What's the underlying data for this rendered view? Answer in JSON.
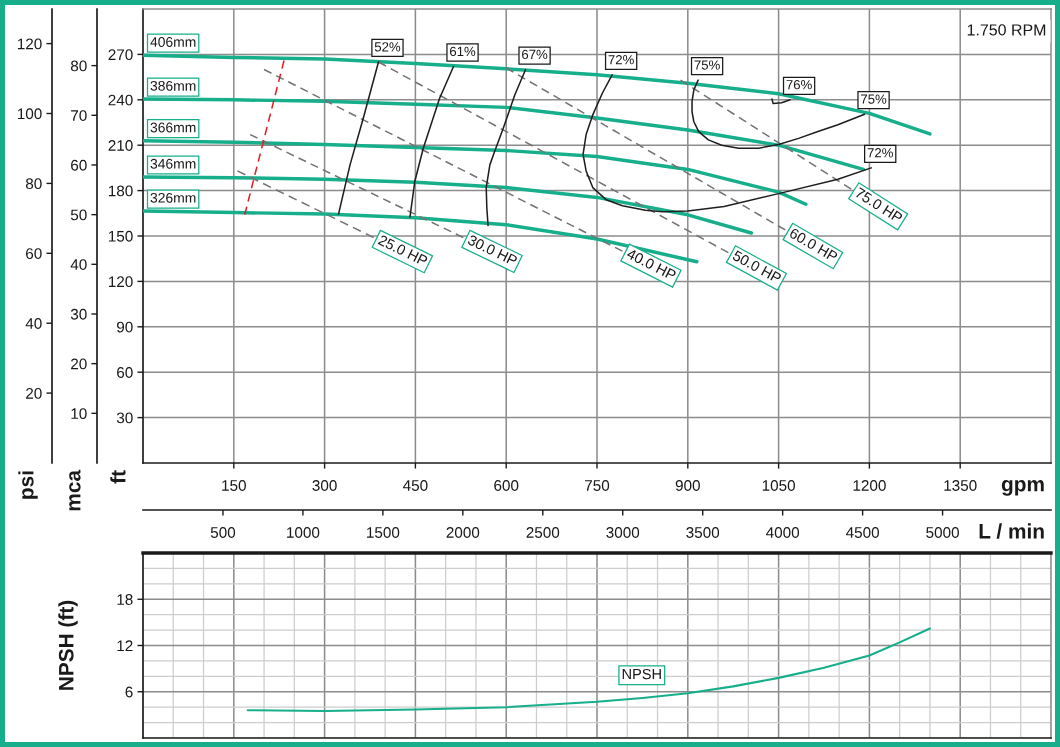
{
  "chart_data": [
    {
      "type": "line",
      "xlabel": "gpm",
      "x2label": "L / min",
      "ylabel": "ft",
      "y2label": "psi",
      "y3label": "mca",
      "xlim": [
        0,
        1500
      ],
      "xticks": [
        150,
        300,
        450,
        600,
        750,
        900,
        1050,
        1200,
        1350
      ],
      "x2lim": [
        0,
        5678
      ],
      "x2ticks": [
        500,
        1000,
        1500,
        2000,
        2500,
        3000,
        3500,
        4000,
        4500,
        5000
      ],
      "ylim": [
        0,
        300
      ],
      "yticks": [
        30,
        60,
        90,
        120,
        150,
        180,
        210,
        240,
        270
      ],
      "y2lim": [
        0,
        129.9
      ],
      "y2ticks": [
        20,
        40,
        60,
        80,
        100,
        120
      ],
      "y3lim": [
        0,
        91.4
      ],
      "y3ticks": [
        10,
        20,
        30,
        40,
        50,
        60,
        70,
        80
      ],
      "grid": true,
      "annotations": [
        "1.750 RPM",
        {
          "text": "52%",
          "x": 389,
          "y": 265
        },
        {
          "text": "61%",
          "x": 513,
          "y": 262
        },
        {
          "text": "67%",
          "x": 632,
          "y": 260
        },
        {
          "text": "72%",
          "x": 775,
          "y": 256.5
        },
        {
          "text": "75%",
          "x": 917,
          "y": 253
        },
        {
          "text": "76%",
          "x": 1069,
          "y": 240
        },
        {
          "text": "75%",
          "x": 1192,
          "y": 230.5
        },
        {
          "text": "72%",
          "x": 1203,
          "y": 195
        }
      ],
      "series": [
        {
          "name": "25.0 HP",
          "color": "#737373",
          "line_style": "dashed",
          "x": [
            381,
            156
          ],
          "values": [
            149,
            193
          ]
        },
        {
          "name": "30.0 HP",
          "color": "#737373",
          "line_style": "dashed",
          "x": [
            529,
            177
          ],
          "values": [
            149,
            217
          ]
        },
        {
          "name": "40.0 HP",
          "color": "#737373",
          "line_style": "dashed",
          "x": [
            792,
            200
          ],
          "values": [
            140,
            260
          ]
        },
        {
          "name": "50.0 HP",
          "color": "#737373",
          "line_style": "dashed",
          "x": [
            967,
            389
          ],
          "values": [
            139,
            265
          ]
        },
        {
          "name": "60.0 HP",
          "color": "#737373",
          "line_style": "dashed",
          "x": [
            1061,
            600
          ],
          "values": [
            154,
            261
          ]
        },
        {
          "name": "75.0 HP",
          "color": "#737373",
          "line_style": "dashed",
          "x": [
            1170,
            888
          ],
          "values": [
            181,
            253
          ]
        },
        {
          "color": "#e31e24",
          "line_style": "dashed",
          "x": [
            168,
            233
          ],
          "values": [
            164,
            266
          ]
        },
        {
          "name": "406mm",
          "color": "#17ae8b",
          "line_style": "solid",
          "x": [
            0,
            150,
            300,
            450,
            600,
            750,
            900,
            1050,
            1200,
            1300
          ],
          "values": [
            269.5,
            268,
            267,
            264,
            260.5,
            256.5,
            251,
            244,
            231,
            217.5
          ]
        },
        {
          "name": "386mm",
          "color": "#17ae8b",
          "line_style": "solid",
          "x": [
            0,
            150,
            300,
            450,
            600,
            750,
            900,
            1050,
            1190
          ],
          "values": [
            240.5,
            240,
            239,
            237,
            235,
            228,
            220,
            210,
            194
          ]
        },
        {
          "name": "366mm",
          "color": "#17ae8b",
          "line_style": "solid",
          "x": [
            0,
            150,
            300,
            450,
            600,
            750,
            900,
            1050,
            1095
          ],
          "values": [
            213,
            212,
            210.5,
            208.5,
            206.5,
            202.5,
            194,
            179,
            171
          ]
        },
        {
          "name": "346mm",
          "color": "#17ae8b",
          "line_style": "solid",
          "x": [
            0,
            150,
            300,
            450,
            600,
            750,
            900,
            1005
          ],
          "values": [
            189,
            188.5,
            187.5,
            185.5,
            182,
            175.5,
            164,
            152
          ]
        },
        {
          "name": "326mm",
          "color": "#17ae8b",
          "line_style": "solid",
          "x": [
            0,
            150,
            300,
            450,
            600,
            750,
            915
          ],
          "values": [
            166.5,
            165.5,
            164.5,
            162,
            157.5,
            148,
            133
          ]
        },
        {
          "color": "#1e1e1e",
          "line_style": "solid",
          "x": [
            389,
            364,
            342,
            323
          ],
          "values": [
            265,
            228,
            197,
            164.5
          ]
        },
        {
          "color": "#1e1e1e",
          "line_style": "solid",
          "x": [
            513,
            490,
            463,
            449,
            441
          ],
          "values": [
            262,
            241,
            208,
            186,
            162.5
          ]
        },
        {
          "color": "#1e1e1e",
          "line_style": "solid",
          "x": [
            632,
            614,
            595,
            581,
            573,
            567,
            568,
            570
          ],
          "values": [
            260,
            243,
            221,
            206,
            197,
            182,
            168.5,
            157
          ]
        },
        {
          "color": "#1e1e1e",
          "line_style": "solid",
          "x": [
            775,
            759,
            743,
            732,
            727,
            732,
            743,
            765,
            792,
            830,
            858,
            900,
            960,
            1050,
            1148,
            1203
          ],
          "values": [
            256.5,
            244.5,
            230,
            217,
            204,
            193,
            182,
            174,
            170,
            167,
            166,
            166.5,
            169.5,
            178,
            187.5,
            195
          ]
        },
        {
          "color": "#1e1e1e",
          "line_style": "solid",
          "x": [
            917,
            910,
            907,
            907,
            910,
            918,
            934,
            956,
            984,
            1017,
            1050,
            1083,
            1115,
            1148,
            1192
          ],
          "values": [
            253,
            246.5,
            239,
            232,
            225.5,
            219,
            213.5,
            210,
            208,
            208,
            210.5,
            214.5,
            219,
            223.5,
            230.5
          ]
        },
        {
          "color": "#1e1e1e",
          "line_style": "solid",
          "x": [
            1069,
            1055,
            1041,
            1039
          ],
          "values": [
            240,
            238,
            237.5,
            240.5
          ]
        }
      ]
    },
    {
      "type": "line",
      "ylabel": "NPSH (ft)",
      "xlim": [
        0,
        1500
      ],
      "xticks": [
        150,
        300,
        450,
        600,
        750,
        900,
        1050,
        1200,
        1350
      ],
      "ylim": [
        0,
        24
      ],
      "yticks": [
        6,
        12,
        18
      ],
      "grid": true,
      "tick_labels": "y",
      "series": [
        {
          "name": "NPSH",
          "color": "#17ae8b",
          "line_style": "solid",
          "x": [
            173,
            300,
            450,
            600,
            750,
            825,
            900,
            975,
            1050,
            1125,
            1200,
            1250,
            1300
          ],
          "values": [
            3.6,
            3.5,
            3.7,
            4.0,
            4.7,
            5.2,
            5.8,
            6.7,
            7.8,
            9.1,
            10.7,
            12.4,
            14.2
          ]
        }
      ]
    }
  ]
}
